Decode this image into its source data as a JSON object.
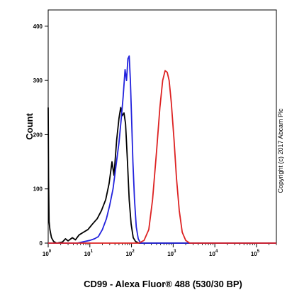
{
  "chart_data": {
    "type": "line",
    "xlabel": "CD99 - Alexa Fluor® 488 (530/30 BP)",
    "ylabel": "Count",
    "x_scale": "log",
    "xlim": [
      1,
      300000
    ],
    "ylim": [
      0,
      430
    ],
    "x_ticks": [
      {
        "value": 1,
        "base": "10",
        "exp": "0"
      },
      {
        "value": 10,
        "base": "10",
        "exp": "1"
      },
      {
        "value": 100,
        "base": "10",
        "exp": "2"
      },
      {
        "value": 1000,
        "base": "10",
        "exp": "3"
      },
      {
        "value": 10000,
        "base": "10",
        "exp": "4"
      },
      {
        "value": 100000,
        "base": "10",
        "exp": "5"
      }
    ],
    "y_ticks": [
      0,
      100,
      200,
      300,
      400
    ],
    "grid": false,
    "legend": "none",
    "annotation": "Copyright (c) 2017 Abcam Plc",
    "series": [
      {
        "color": "#000000",
        "points": [
          [
            1.0,
            250
          ],
          [
            1.02,
            120
          ],
          [
            1.05,
            40
          ],
          [
            1.1,
            25
          ],
          [
            1.2,
            10
          ],
          [
            1.35,
            3
          ],
          [
            1.6,
            0
          ],
          [
            2.2,
            2
          ],
          [
            2.6,
            8
          ],
          [
            3.0,
            4
          ],
          [
            3.8,
            10
          ],
          [
            4.5,
            6
          ],
          [
            5.5,
            15
          ],
          [
            7.0,
            20
          ],
          [
            9.0,
            25
          ],
          [
            11.5,
            35
          ],
          [
            15,
            45
          ],
          [
            19,
            60
          ],
          [
            24,
            80
          ],
          [
            29,
            110
          ],
          [
            34,
            150
          ],
          [
            38,
            125
          ],
          [
            44,
            190
          ],
          [
            50,
            230
          ],
          [
            55,
            250
          ],
          [
            60,
            235
          ],
          [
            66,
            240
          ],
          [
            72,
            220
          ],
          [
            80,
            150
          ],
          [
            88,
            80
          ],
          [
            98,
            35
          ],
          [
            110,
            10
          ],
          [
            125,
            3
          ],
          [
            150,
            0
          ],
          [
            300000,
            0
          ]
        ]
      },
      {
        "color": "#2222dd",
        "points": [
          [
            1.0,
            0
          ],
          [
            5.0,
            0
          ],
          [
            10,
            5
          ],
          [
            13,
            8
          ],
          [
            16,
            12
          ],
          [
            20,
            25
          ],
          [
            25,
            45
          ],
          [
            30,
            70
          ],
          [
            36,
            100
          ],
          [
            42,
            140
          ],
          [
            50,
            185
          ],
          [
            56,
            225
          ],
          [
            63,
            270
          ],
          [
            70,
            320
          ],
          [
            76,
            300
          ],
          [
            82,
            340
          ],
          [
            88,
            345
          ],
          [
            94,
            300
          ],
          [
            100,
            235
          ],
          [
            108,
            150
          ],
          [
            118,
            80
          ],
          [
            130,
            30
          ],
          [
            145,
            8
          ],
          [
            165,
            0
          ],
          [
            300000,
            0
          ]
        ]
      },
      {
        "color": "#dd2222",
        "points": [
          [
            1.0,
            0
          ],
          [
            150,
            0
          ],
          [
            200,
            5
          ],
          [
            260,
            25
          ],
          [
            320,
            80
          ],
          [
            400,
            170
          ],
          [
            480,
            250
          ],
          [
            560,
            300
          ],
          [
            640,
            318
          ],
          [
            720,
            315
          ],
          [
            800,
            300
          ],
          [
            900,
            260
          ],
          [
            1050,
            190
          ],
          [
            1200,
            120
          ],
          [
            1400,
            60
          ],
          [
            1650,
            20
          ],
          [
            2000,
            5
          ],
          [
            2500,
            0
          ],
          [
            300000,
            0
          ]
        ]
      }
    ]
  }
}
